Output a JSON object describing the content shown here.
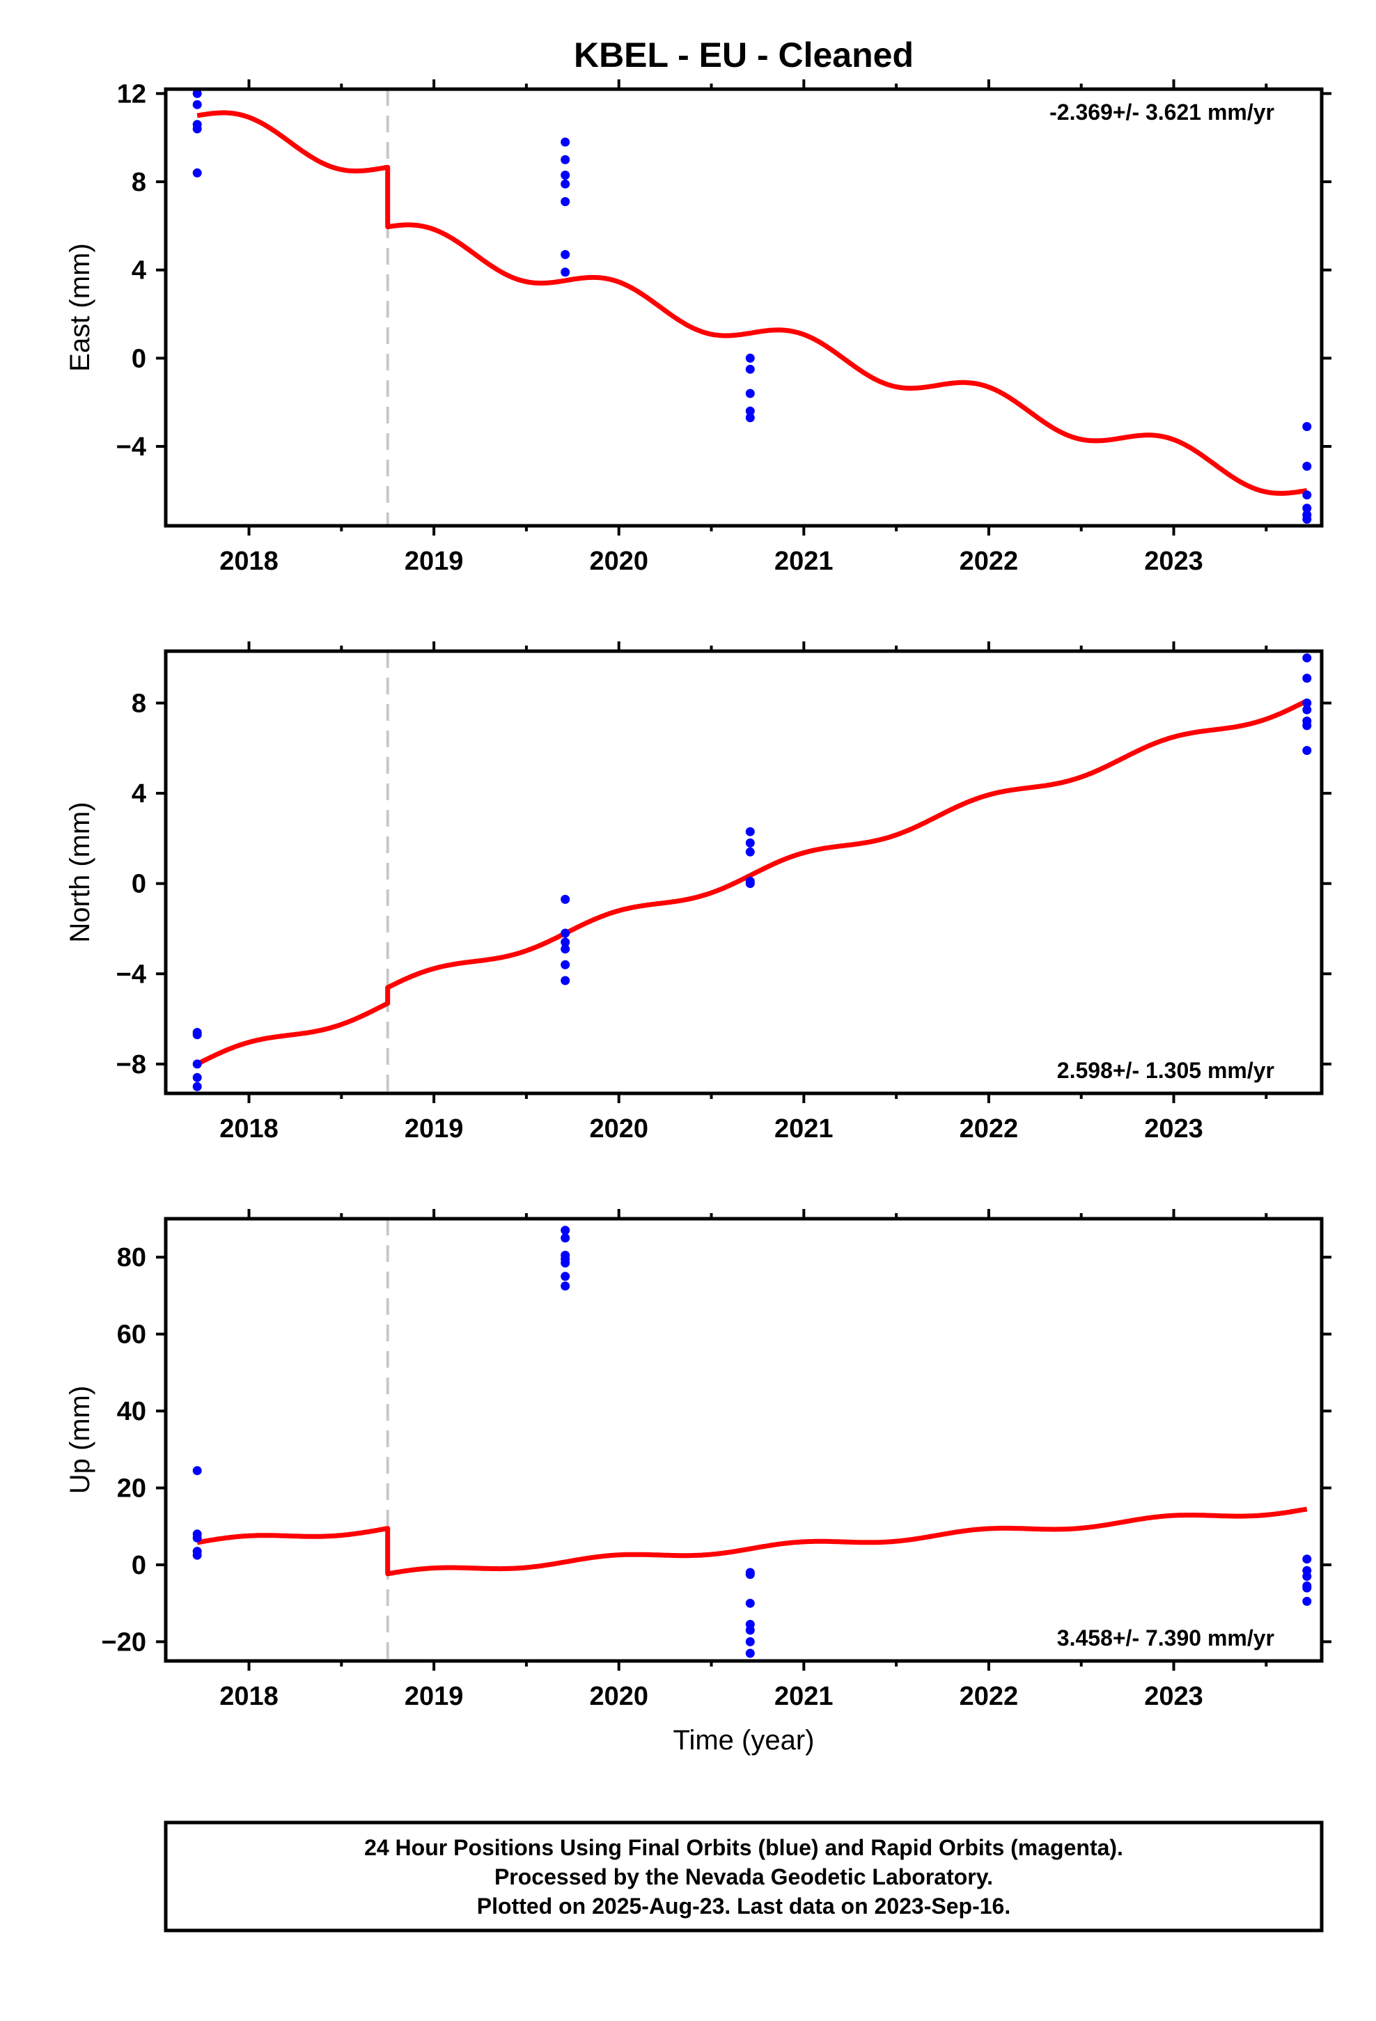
{
  "chart_data": {
    "type": "scatter",
    "title": "KBEL  - EU - Cleaned",
    "xlabel": "Time (year)",
    "xlim": [
      2017.55,
      2023.8
    ],
    "xticks": [
      2018,
      2019,
      2020,
      2021,
      2022,
      2023
    ],
    "offset_epoch": 2018.75,
    "colors": {
      "positions": "#0000ff",
      "model": "#ff0000",
      "offset_line": "#c8c8c8",
      "frame": "#000000"
    },
    "panels": [
      {
        "name": "East",
        "ylabel": "East (mm)",
        "ylim": [
          -7.6,
          12.2
        ],
        "yticks": [
          12,
          8,
          4,
          0,
          -4
        ],
        "rate_label": "-2.369+/- 3.621 mm/yr",
        "rate_position": "top-right",
        "model": {
          "start": [
            2017.72,
            11.0
          ],
          "end": [
            2023.72,
            -6.0
          ],
          "offset_at_epoch": -2.7,
          "seasonal_amplitude": 0.6
        },
        "points": [
          [
            2017.72,
            12.0
          ],
          [
            2017.72,
            11.5
          ],
          [
            2017.72,
            10.6
          ],
          [
            2017.72,
            10.4
          ],
          [
            2017.72,
            8.4
          ],
          [
            2019.71,
            9.8
          ],
          [
            2019.71,
            9.0
          ],
          [
            2019.71,
            8.3
          ],
          [
            2019.71,
            7.9
          ],
          [
            2019.71,
            7.1
          ],
          [
            2019.71,
            4.7
          ],
          [
            2019.71,
            3.9
          ],
          [
            2020.71,
            0.0
          ],
          [
            2020.71,
            -0.5
          ],
          [
            2020.71,
            -1.6
          ],
          [
            2020.71,
            -2.4
          ],
          [
            2020.71,
            -2.7
          ],
          [
            2023.72,
            -3.1
          ],
          [
            2023.72,
            -4.9
          ],
          [
            2023.72,
            -6.2
          ],
          [
            2023.72,
            -6.8
          ],
          [
            2023.72,
            -7.1
          ],
          [
            2023.72,
            -7.3
          ]
        ]
      },
      {
        "name": "North",
        "ylabel": "North (mm)",
        "ylim": [
          -9.3,
          10.3
        ],
        "yticks": [
          8,
          4,
          0,
          -4,
          -8
        ],
        "rate_label": "2.598+/- 1.305 mm/yr",
        "rate_position": "bottom-right",
        "model": {
          "start": [
            2017.72,
            -8.0
          ],
          "end": [
            2023.72,
            8.1
          ],
          "offset_at_epoch": 0.7,
          "seasonal_amplitude": 0.25
        },
        "points": [
          [
            2017.72,
            -6.6
          ],
          [
            2017.72,
            -6.7
          ],
          [
            2017.72,
            -8.0
          ],
          [
            2017.72,
            -8.6
          ],
          [
            2017.72,
            -9.0
          ],
          [
            2019.71,
            -0.7
          ],
          [
            2019.71,
            -2.2
          ],
          [
            2019.71,
            -2.6
          ],
          [
            2019.71,
            -2.9
          ],
          [
            2019.71,
            -3.6
          ],
          [
            2019.71,
            -4.3
          ],
          [
            2020.71,
            2.3
          ],
          [
            2020.71,
            1.8
          ],
          [
            2020.71,
            1.4
          ],
          [
            2020.71,
            0.1
          ],
          [
            2020.71,
            0.0
          ],
          [
            2023.72,
            10.0
          ],
          [
            2023.72,
            9.1
          ],
          [
            2023.72,
            8.0
          ],
          [
            2023.72,
            7.7
          ],
          [
            2023.72,
            7.2
          ],
          [
            2023.72,
            7.0
          ],
          [
            2023.72,
            5.9
          ]
        ]
      },
      {
        "name": "Up",
        "ylabel": "Up (mm)",
        "ylim": [
          -25,
          90
        ],
        "yticks": [
          80,
          60,
          40,
          20,
          0,
          -20
        ],
        "rate_label": "3.458+/- 7.390 mm/yr",
        "rate_position": "bottom-right",
        "model": {
          "start": [
            2017.72,
            5.8
          ],
          "end": [
            2023.72,
            14.5
          ],
          "offset_at_epoch": -11.8,
          "seasonal_amplitude": 0.8
        },
        "points": [
          [
            2017.72,
            24.5
          ],
          [
            2017.72,
            8.0
          ],
          [
            2017.72,
            7.0
          ],
          [
            2017.72,
            3.5
          ],
          [
            2017.72,
            2.5
          ],
          [
            2019.71,
            87.0
          ],
          [
            2019.71,
            85.0
          ],
          [
            2019.71,
            80.5
          ],
          [
            2019.71,
            79.5
          ],
          [
            2019.71,
            78.5
          ],
          [
            2019.71,
            75.0
          ],
          [
            2019.71,
            72.5
          ],
          [
            2020.71,
            -2.0
          ],
          [
            2020.71,
            -2.5
          ],
          [
            2020.71,
            -10.0
          ],
          [
            2020.71,
            -15.5
          ],
          [
            2020.71,
            -17.0
          ],
          [
            2020.71,
            -20.0
          ],
          [
            2020.71,
            -23.0
          ],
          [
            2023.72,
            1.5
          ],
          [
            2023.72,
            -1.5
          ],
          [
            2023.72,
            -3.0
          ],
          [
            2023.72,
            -5.5
          ],
          [
            2023.72,
            -6.0
          ],
          [
            2023.72,
            -9.5
          ]
        ]
      }
    ]
  },
  "footer": {
    "line1": "24 Hour Positions Using Final Orbits (blue) and Rapid Orbits (magenta).",
    "line2": "Processed by the Nevada Geodetic Laboratory.",
    "line3": "Plotted on 2025-Aug-23. Last data on 2023-Sep-16."
  }
}
